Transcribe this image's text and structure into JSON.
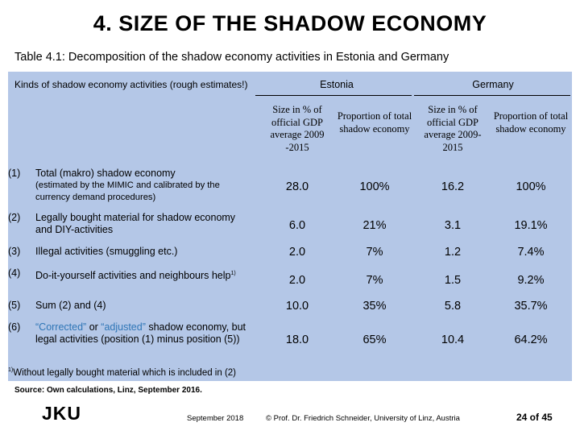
{
  "title": "4. SIZE OF THE SHADOW ECONOMY",
  "subtitle": "Table 4.1: Decomposition of the shadow economy activities in Estonia and Germany",
  "table": {
    "header_label": "Kinds of shadow economy activities (rough estimates!)",
    "countries": [
      "Estonia",
      "Germany"
    ],
    "sub_headers": [
      "Size in % of official GDP average 2009 -2015",
      "Proportion of total shadow economy",
      "Size in % of official GDP average 2009-2015",
      "Proportion of total shadow economy"
    ],
    "rows": [
      {
        "num": "(1)",
        "label": "Total (makro) shadow economy",
        "note": "(estimated by the MIMIC and calibrated by the currency demand procedures)",
        "values": [
          "28.0",
          "100%",
          "16.2",
          "100%"
        ]
      },
      {
        "num": "(2)",
        "label": "Legally bought material for shadow economy and DIY-activities",
        "values": [
          "6.0",
          "21%",
          "3.1",
          "19.1%"
        ]
      },
      {
        "num": "(3)",
        "label": "Illegal activities (smuggling etc.)",
        "values": [
          "2.0",
          "7%",
          "1.2",
          "7.4%"
        ]
      },
      {
        "num": "(4)",
        "label": "Do-it-yourself activities and neighbours help",
        "footnote_mark": "1)",
        "values": [
          "2.0",
          "7%",
          "1.5",
          "9.2%"
        ]
      },
      {
        "num": "(5)",
        "label": "Sum (2) and (4)",
        "values": [
          "10.0",
          "35%",
          "5.8",
          "35.7%"
        ]
      },
      {
        "num": "(6)",
        "label_part1": "“Corrected”",
        "label_or": " or ",
        "label_part2": "“adjusted”",
        "label_rest": " shadow economy, but legal activities (position (1) minus position (5))",
        "values": [
          "18.0",
          "65%",
          "10.4",
          "64.2%"
        ]
      }
    ],
    "footnote_mark": "1)",
    "footnote": "Without legally bought material which is included in (2)"
  },
  "source": "Source: Own calculations, Linz, September 2016.",
  "logo": "JKU",
  "footer": {
    "date": "September 2018",
    "author": "© Prof. Dr. Friedrich Schneider, University of Linz, Austria",
    "page": "24 of 45"
  },
  "colors": {
    "panel_bg": "#b4c7e7",
    "highlight_blue": "#2e75b6"
  }
}
